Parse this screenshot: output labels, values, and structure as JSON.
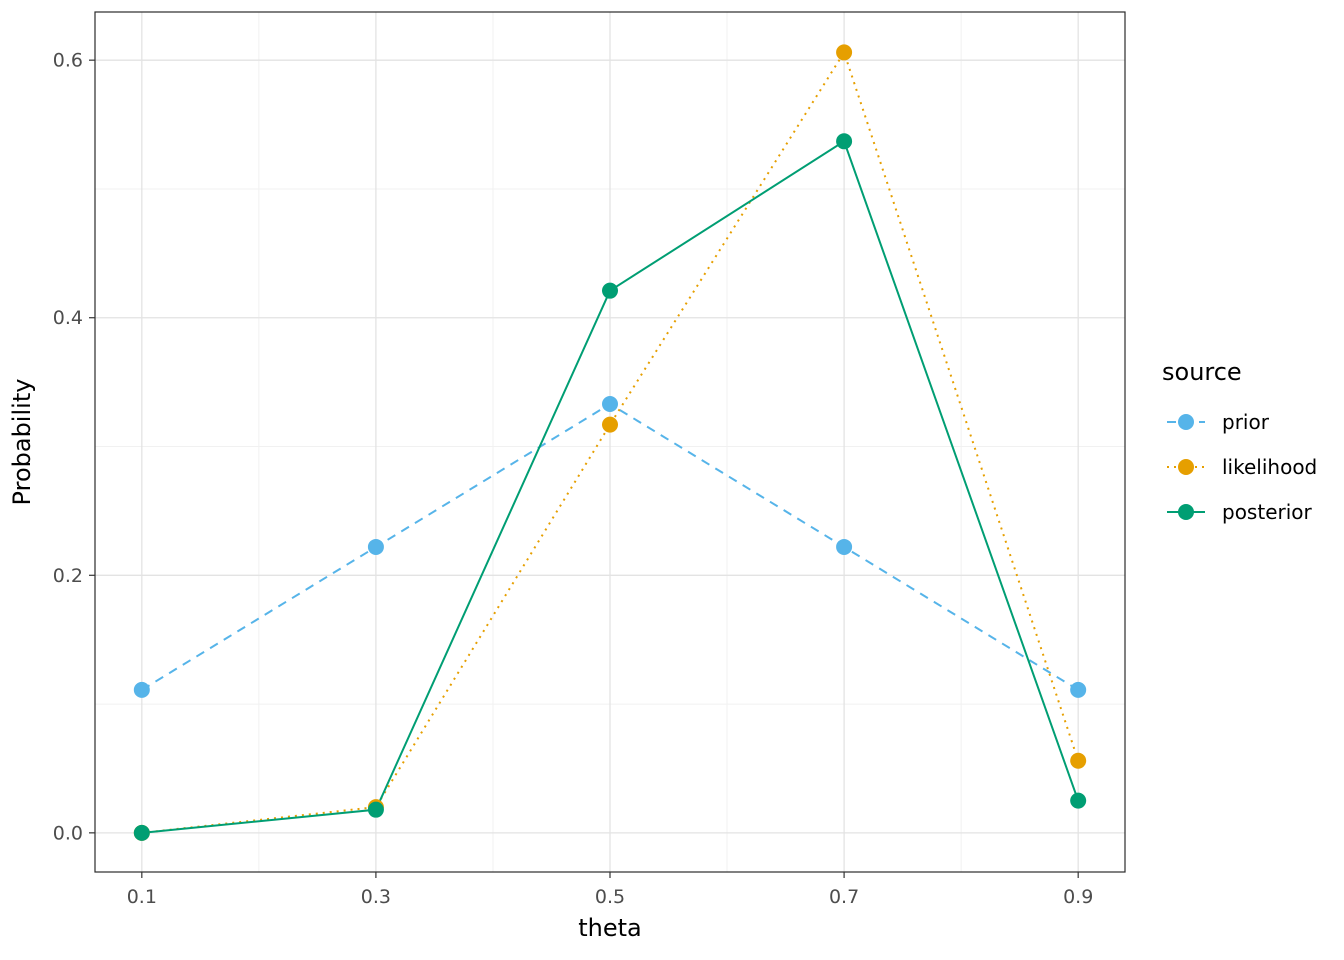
{
  "chart_data": {
    "type": "line",
    "x": [
      0.1,
      0.3,
      0.5,
      0.7,
      0.9
    ],
    "x_tick_labels": [
      "0.1",
      "0.3",
      "0.5",
      "0.7",
      "0.9"
    ],
    "y_ticks": [
      0.0,
      0.2,
      0.4,
      0.6
    ],
    "y_tick_labels": [
      "0.0",
      "0.2",
      "0.4",
      "0.6"
    ],
    "x_minor": [
      0.2,
      0.4,
      0.6,
      0.8
    ],
    "y_minor": [
      0.1,
      0.3,
      0.5
    ],
    "xlim": [
      0.06,
      0.94
    ],
    "ylim": [
      -0.0304,
      0.6374
    ],
    "xlabel": "theta",
    "ylabel": "Probability",
    "legend_title": "source",
    "legend_position": "right",
    "grid": true,
    "series": [
      {
        "name": "prior",
        "color": "#56B4E9",
        "linetype": "dashed",
        "values": [
          0.111,
          0.222,
          0.333,
          0.222,
          0.111
        ]
      },
      {
        "name": "likelihood",
        "color": "#E69F00",
        "linetype": "dotted",
        "values": [
          0.0,
          0.02,
          0.317,
          0.606,
          0.056
        ]
      },
      {
        "name": "posterior",
        "color": "#009E73",
        "linetype": "solid",
        "values": [
          0.0,
          0.018,
          0.421,
          0.537,
          0.025
        ]
      }
    ],
    "colors": {
      "background": "#ffffff",
      "panel_background": "#ffffff",
      "panel_border": "#2b2b2b",
      "grid_major": "#e3e3e3",
      "grid_minor": "#f1f1f1",
      "tick_mark": "#333333",
      "tick_label": "#4d4d4d",
      "axis_title": "#000000",
      "legend_text": "#000000"
    }
  }
}
